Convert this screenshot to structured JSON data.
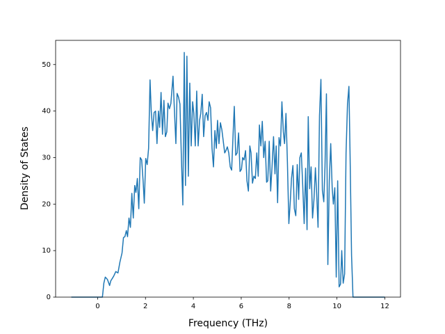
{
  "chart_data": {
    "type": "line",
    "xlabel": "Frequency (THz)",
    "ylabel": "Density of States",
    "color": "#1f77b4",
    "x": [
      -1.1,
      0.2,
      0.26,
      0.32,
      0.41,
      0.5,
      0.55,
      0.67,
      0.76,
      0.85,
      0.93,
      1.02,
      1.08,
      1.14,
      1.2,
      1.25,
      1.31,
      1.37,
      1.43,
      1.49,
      1.55,
      1.6,
      1.66,
      1.72,
      1.78,
      1.84,
      1.9,
      1.95,
      2.01,
      2.07,
      2.13,
      2.19,
      2.24,
      2.3,
      2.36,
      2.42,
      2.48,
      2.54,
      2.59,
      2.65,
      2.71,
      2.77,
      2.83,
      2.89,
      2.94,
      3.0,
      3.06,
      3.15,
      3.21,
      3.27,
      3.32,
      3.38,
      3.44,
      3.5,
      3.56,
      3.62,
      3.67,
      3.73,
      3.79,
      3.85,
      3.91,
      3.97,
      4.02,
      4.08,
      4.14,
      4.2,
      4.26,
      4.31,
      4.37,
      4.43,
      4.49,
      4.55,
      4.61,
      4.66,
      4.72,
      4.78,
      4.84,
      4.9,
      4.96,
      5.01,
      5.07,
      5.13,
      5.19,
      5.25,
      5.31,
      5.36,
      5.42,
      5.48,
      5.54,
      5.6,
      5.66,
      5.71,
      5.77,
      5.83,
      5.89,
      5.95,
      6.01,
      6.06,
      6.12,
      6.18,
      6.24,
      6.3,
      6.36,
      6.41,
      6.47,
      6.53,
      6.59,
      6.65,
      6.71,
      6.76,
      6.82,
      6.88,
      6.94,
      7.0,
      7.06,
      7.11,
      7.17,
      7.23,
      7.29,
      7.35,
      7.41,
      7.46,
      7.52,
      7.58,
      7.64,
      7.7,
      7.76,
      7.81,
      7.87,
      7.93,
      7.99,
      8.05,
      8.1,
      8.16,
      8.22,
      8.28,
      8.34,
      8.4,
      8.45,
      8.51,
      8.57,
      8.63,
      8.69,
      8.75,
      8.8,
      8.86,
      8.92,
      8.98,
      9.04,
      9.1,
      9.15,
      9.21,
      9.27,
      9.33,
      9.39,
      9.45,
      9.5,
      9.56,
      9.62,
      9.68,
      9.74,
      9.8,
      9.85,
      9.91,
      9.97,
      10.03,
      10.09,
      10.15,
      10.2,
      10.26,
      10.32,
      10.38,
      10.44,
      10.5,
      10.55,
      10.61,
      10.67,
      12.0
    ],
    "values": [
      0,
      0,
      3,
      4.3,
      3.8,
      2.5,
      3.5,
      4.5,
      5.5,
      5.2,
      7.5,
      9.5,
      12.8,
      13,
      14.3,
      13,
      17,
      15,
      22.3,
      17,
      24,
      22.5,
      25.5,
      19,
      30,
      29.5,
      25,
      20.2,
      29.8,
      28.5,
      32,
      46.7,
      40,
      35.8,
      39.7,
      40,
      33,
      40,
      36.5,
      44,
      35,
      42.3,
      34.5,
      35.5,
      41.7,
      40.5,
      41.6,
      47.5,
      40,
      33,
      43.8,
      43,
      41.5,
      30,
      19.8,
      52.6,
      24,
      51.8,
      26,
      46,
      32.5,
      42,
      39.5,
      32.5,
      44.3,
      32.5,
      38,
      39.5,
      43.6,
      34.5,
      39,
      39.7,
      38,
      42,
      40.7,
      32,
      28,
      35.8,
      32,
      38,
      33,
      37.5,
      36,
      33.5,
      31,
      31.5,
      32.3,
      31,
      28,
      27.3,
      35,
      41,
      30.5,
      31,
      35.3,
      27,
      27.5,
      30,
      29.5,
      31.5,
      25,
      22.8,
      32.5,
      31,
      24.5,
      26,
      25.5,
      31,
      26,
      37,
      32.5,
      37.8,
      30,
      33.5,
      24.7,
      25,
      33.5,
      22.8,
      28.3,
      34.5,
      26.5,
      32.5,
      20.3,
      34.3,
      32.5,
      42,
      35.5,
      33,
      39.5,
      29,
      15.8,
      20.5,
      25.5,
      28.3,
      19,
      17.5,
      28.5,
      21,
      30,
      31,
      24,
      15.8,
      27.7,
      14.5,
      38.8,
      23.3,
      28,
      17,
      21,
      27.8,
      22.5,
      15,
      39,
      46.8,
      23,
      20.5,
      28,
      43.7,
      7,
      25,
      33,
      23.5,
      20,
      23.5,
      4.3,
      25,
      2.2,
      2.8,
      10,
      3,
      5,
      31,
      41.5,
      45.3,
      30,
      9,
      0,
      0
    ],
    "xlim": [
      -1.755,
      12.655
    ],
    "ylim": [
      0,
      55.2
    ],
    "xticks": [
      0,
      2,
      4,
      6,
      8,
      10,
      12
    ],
    "yticks": [
      0,
      10,
      20,
      30,
      40,
      50
    ]
  }
}
